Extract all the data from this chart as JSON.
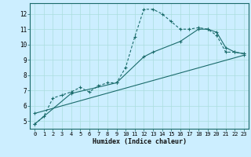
{
  "xlabel": "Humidex (Indice chaleur)",
  "bg_color": "#cceeff",
  "line_color": "#1a6b6b",
  "grid_color": "#aadddd",
  "xlim": [
    -0.5,
    23.5
  ],
  "ylim": [
    4.5,
    12.7
  ],
  "xticks": [
    0,
    1,
    2,
    3,
    4,
    5,
    6,
    7,
    8,
    9,
    10,
    11,
    12,
    13,
    14,
    15,
    16,
    17,
    18,
    19,
    20,
    21,
    22,
    23
  ],
  "yticks": [
    5,
    6,
    7,
    8,
    9,
    10,
    11,
    12
  ],
  "series1_x": [
    0,
    1,
    2,
    3,
    4,
    5,
    6,
    7,
    8,
    9,
    10,
    11,
    12,
    13,
    14,
    15,
    16,
    17,
    18,
    19,
    20,
    21,
    22,
    23
  ],
  "series1_y": [
    4.8,
    5.3,
    6.5,
    6.7,
    6.9,
    7.2,
    6.9,
    7.3,
    7.5,
    7.5,
    8.5,
    10.5,
    12.3,
    12.3,
    12.0,
    11.5,
    11.0,
    11.0,
    11.1,
    11.0,
    10.6,
    9.5,
    9.5,
    9.4
  ],
  "series2_x": [
    0,
    4,
    9,
    12,
    13,
    16,
    18,
    19,
    20,
    21,
    22,
    23
  ],
  "series2_y": [
    4.8,
    6.8,
    7.5,
    9.2,
    9.5,
    10.2,
    11.0,
    11.0,
    10.8,
    9.8,
    9.5,
    9.4
  ],
  "series3_x": [
    0,
    23
  ],
  "series3_y": [
    5.5,
    9.3
  ]
}
